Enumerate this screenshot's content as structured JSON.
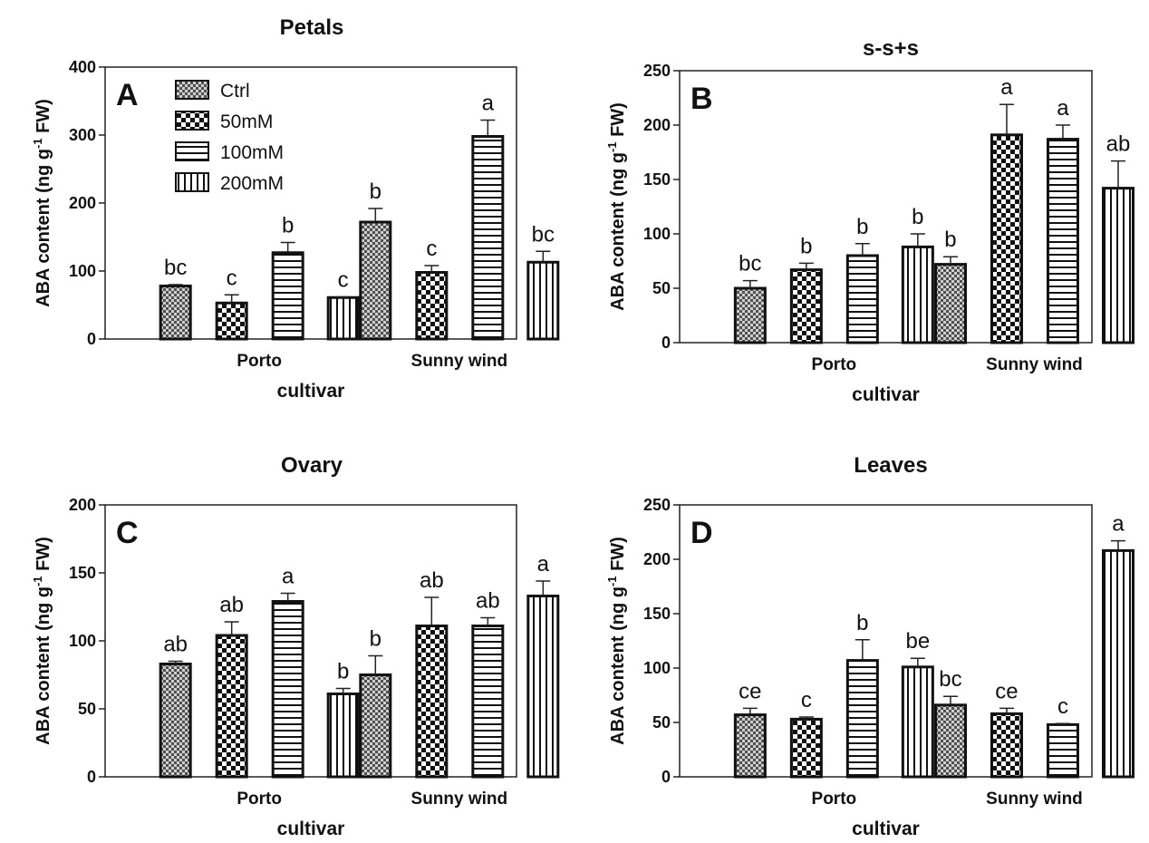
{
  "chart_data": [
    {
      "type": "bar",
      "panel_label": "A",
      "title": "Petals",
      "xlabel": "cultivar",
      "ylabel_main": "ABA content (ng g",
      "ylabel_sup": "-1",
      "ylabel_tail": " FW)",
      "ylim": [
        0,
        400
      ],
      "yticks": [
        "0",
        "100",
        "200",
        "300",
        "400"
      ],
      "categories": [
        "Porto",
        "Sunny wind"
      ],
      "legend": {
        "placement": "top-left",
        "items": [
          "Ctrl",
          "50mM",
          "100mM",
          "200mM"
        ]
      },
      "series": [
        {
          "name": "Ctrl",
          "pattern": "fine-checker",
          "values": [
            78,
            172
          ],
          "errors": [
            2,
            20
          ],
          "letters": [
            "bc",
            "b"
          ]
        },
        {
          "name": "50mM",
          "pattern": "checker",
          "values": [
            53,
            98
          ],
          "errors": [
            12,
            10
          ],
          "letters": [
            "c",
            "c"
          ]
        },
        {
          "name": "100mM",
          "pattern": "horizontal",
          "values": [
            127,
            298
          ],
          "errors": [
            15,
            24
          ],
          "letters": [
            "b",
            "a"
          ]
        },
        {
          "name": "200mM",
          "pattern": "vertical",
          "values": [
            61,
            113
          ],
          "errors": [
            1,
            16
          ],
          "letters": [
            "c",
            "bc"
          ]
        }
      ]
    },
    {
      "type": "bar",
      "panel_label": "B",
      "title": "s-s+s",
      "xlabel": "cultivar",
      "ylabel_main": "ABA content (ng g",
      "ylabel_sup": "-1",
      "ylabel_tail": " FW)",
      "ylim": [
        0,
        250
      ],
      "yticks": [
        "0",
        "50",
        "100",
        "150",
        "200",
        "250"
      ],
      "categories": [
        "Porto",
        "Sunny wind"
      ],
      "series": [
        {
          "name": "Ctrl",
          "pattern": "fine-checker",
          "values": [
            50,
            72
          ],
          "errors": [
            7,
            7
          ],
          "letters": [
            "bc",
            "b"
          ]
        },
        {
          "name": "50mM",
          "pattern": "checker",
          "values": [
            67,
            191
          ],
          "errors": [
            6,
            28
          ],
          "letters": [
            "b",
            "a"
          ]
        },
        {
          "name": "100mM",
          "pattern": "horizontal",
          "values": [
            80,
            187
          ],
          "errors": [
            11,
            13
          ],
          "letters": [
            "b",
            "a"
          ]
        },
        {
          "name": "200mM",
          "pattern": "vertical",
          "values": [
            88,
            142
          ],
          "errors": [
            12,
            25
          ],
          "letters": [
            "b",
            "ab"
          ]
        }
      ]
    },
    {
      "type": "bar",
      "panel_label": "C",
      "title": "Ovary",
      "xlabel": "cultivar",
      "ylabel_main": "ABA content (ng g",
      "ylabel_sup": "-1",
      "ylabel_tail": " FW)",
      "ylim": [
        0,
        200
      ],
      "yticks": [
        "0",
        "50",
        "100",
        "150",
        "200"
      ],
      "categories": [
        "Porto",
        "Sunny wind"
      ],
      "series": [
        {
          "name": "Ctrl",
          "pattern": "fine-checker",
          "values": [
            83,
            75
          ],
          "errors": [
            2,
            14
          ],
          "letters": [
            "ab",
            "b"
          ]
        },
        {
          "name": "50mM",
          "pattern": "checker",
          "values": [
            104,
            111
          ],
          "errors": [
            10,
            21
          ],
          "letters": [
            "ab",
            "ab"
          ]
        },
        {
          "name": "100mM",
          "pattern": "horizontal",
          "values": [
            129,
            111
          ],
          "errors": [
            6,
            6
          ],
          "letters": [
            "a",
            "ab"
          ]
        },
        {
          "name": "200mM",
          "pattern": "vertical",
          "values": [
            61,
            133
          ],
          "errors": [
            4,
            11
          ],
          "letters": [
            "b",
            "a"
          ]
        }
      ]
    },
    {
      "type": "bar",
      "panel_label": "D",
      "title": "Leaves",
      "xlabel": "cultivar",
      "ylabel_main": "ABA content (ng g",
      "ylabel_sup": "-1",
      "ylabel_tail": " FW)",
      "ylim": [
        0,
        250
      ],
      "yticks": [
        "0",
        "50",
        "100",
        "150",
        "200",
        "250"
      ],
      "categories": [
        "Porto",
        "Sunny wind"
      ],
      "series": [
        {
          "name": "Ctrl",
          "pattern": "fine-checker",
          "values": [
            57,
            66
          ],
          "errors": [
            6,
            8
          ],
          "letters": [
            "ce",
            "bc"
          ]
        },
        {
          "name": "50mM",
          "pattern": "checker",
          "values": [
            53,
            58
          ],
          "errors": [
            2,
            5
          ],
          "letters": [
            "c",
            "ce"
          ]
        },
        {
          "name": "100mM",
          "pattern": "horizontal",
          "values": [
            107,
            48
          ],
          "errors": [
            19,
            1
          ],
          "letters": [
            "b",
            "c"
          ]
        },
        {
          "name": "200mM",
          "pattern": "vertical",
          "values": [
            101,
            208
          ],
          "errors": [
            8,
            9
          ],
          "letters": [
            "be",
            "a"
          ]
        }
      ]
    }
  ]
}
